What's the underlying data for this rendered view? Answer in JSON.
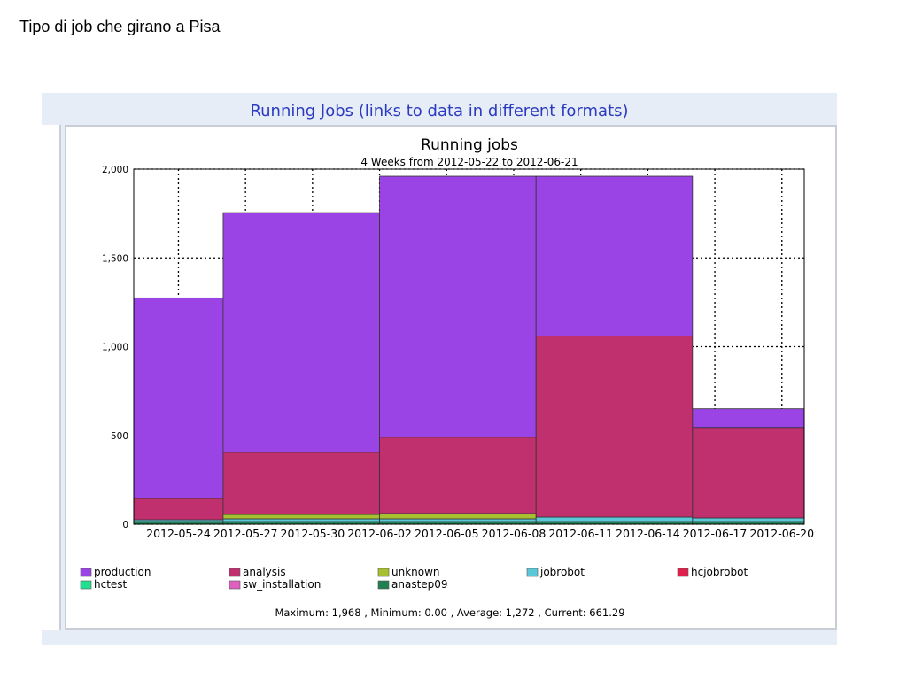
{
  "slide": {
    "title": "Tipo di job che girano a Pisa"
  },
  "panel": {
    "header": "Running Jobs (links to data in different formats)"
  },
  "chart_data": {
    "type": "bar",
    "stacked": true,
    "title": "Running jobs",
    "subtitle": "4 Weeks from 2012-05-22 to 2012-06-21",
    "xlabel": "",
    "ylabel": "",
    "ylim": [
      0,
      2000
    ],
    "yticks": [
      0,
      500,
      1000,
      1500,
      2000
    ],
    "ytick_labels": [
      "0",
      "500",
      "1,000",
      "1,500",
      "2,000"
    ],
    "xtick_labels": [
      "2012-05-24",
      "2012-05-27",
      "2012-05-30",
      "2012-06-02",
      "2012-06-05",
      "2012-06-08",
      "2012-06-11",
      "2012-06-14",
      "2012-06-17",
      "2012-06-20"
    ],
    "x_range": [
      "2012-05-22",
      "2012-06-21"
    ],
    "bins": [
      {
        "start": "2012-05-22",
        "end": "2012-05-26"
      },
      {
        "start": "2012-05-26",
        "end": "2012-06-02"
      },
      {
        "start": "2012-06-02",
        "end": "2012-06-09"
      },
      {
        "start": "2012-06-09",
        "end": "2012-06-16"
      },
      {
        "start": "2012-06-16",
        "end": "2012-06-21"
      }
    ],
    "series": [
      {
        "name": "production",
        "color": "#9b44e6",
        "values": [
          1130,
          1350,
          1470,
          900,
          105
        ]
      },
      {
        "name": "analysis",
        "color": "#c0306e",
        "values": [
          120,
          350,
          430,
          1020,
          510
        ]
      },
      {
        "name": "unknown",
        "color": "#a8c030",
        "values": [
          0,
          25,
          30,
          0,
          0
        ]
      },
      {
        "name": "jobrobot",
        "color": "#5bc8d8",
        "values": [
          10,
          15,
          15,
          25,
          20
        ]
      },
      {
        "name": "hcjobrobot",
        "color": "#e0204a",
        "values": [
          0,
          0,
          0,
          0,
          0
        ]
      },
      {
        "name": "hctest",
        "color": "#20e090",
        "values": [
          0,
          0,
          0,
          0,
          0
        ]
      },
      {
        "name": "sw_installation",
        "color": "#e060c0",
        "values": [
          0,
          0,
          0,
          0,
          0
        ]
      },
      {
        "name": "anastep09",
        "color": "#208050",
        "values": [
          15,
          15,
          15,
          15,
          15
        ]
      }
    ],
    "grid": true,
    "legend_placement": "bottom",
    "stats": "Maximum: 1,968 , Minimum: 0.00 , Average: 1,272 , Current: 661.29"
  }
}
